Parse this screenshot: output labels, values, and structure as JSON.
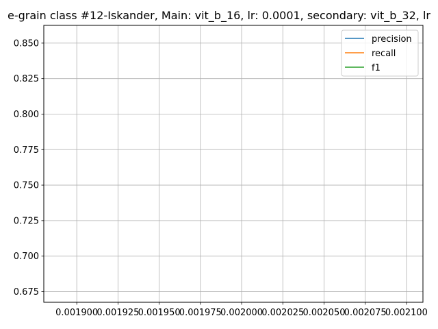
{
  "chart_data": {
    "type": "line",
    "title": "e-grain class #12-Iskander, Main: vit_b_16, lr: 0.0001, secondary: vit_b_32, lr",
    "xlabel": "",
    "ylabel": "",
    "xlim": [
      0.00188,
      0.00211
    ],
    "ylim": [
      0.6675,
      0.8625
    ],
    "x_ticks": [
      0.0019,
      0.001925,
      0.00195,
      0.001975,
      0.002,
      0.002025,
      0.00205,
      0.002075,
      0.0021
    ],
    "x_tick_labels": [
      "0.001900",
      "0.001925",
      "0.001950",
      "0.001975",
      "0.002000",
      "0.002025",
      "0.002050",
      "0.002075",
      "0.002100"
    ],
    "y_ticks": [
      0.675,
      0.7,
      0.725,
      0.75,
      0.775,
      0.8,
      0.825,
      0.85
    ],
    "y_tick_labels": [
      "0.675",
      "0.700",
      "0.725",
      "0.750",
      "0.775",
      "0.800",
      "0.825",
      "0.850"
    ],
    "grid": true,
    "legend_position": "top-right",
    "series": [
      {
        "name": "precision",
        "color": "#1f77b4",
        "x": [],
        "y": []
      },
      {
        "name": "recall",
        "color": "#ff7f0e",
        "x": [],
        "y": []
      },
      {
        "name": "f1",
        "color": "#2ca02c",
        "x": [],
        "y": []
      }
    ]
  }
}
